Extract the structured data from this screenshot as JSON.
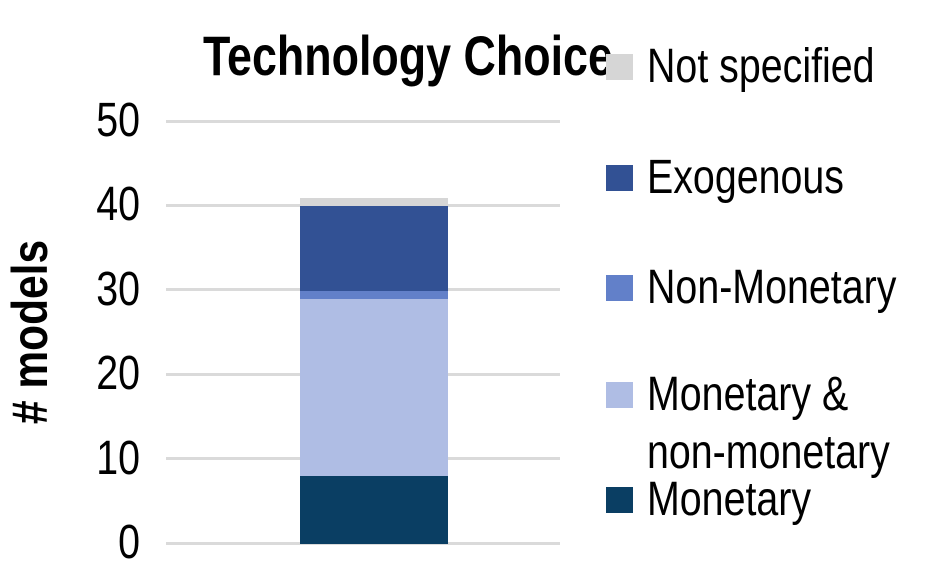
{
  "chart_data": {
    "type": "bar",
    "stacked": true,
    "title": "Technology Choice",
    "xlabel": "",
    "ylabel": "# models",
    "ylim": [
      0,
      50
    ],
    "yticks": [
      0,
      10,
      20,
      30,
      40,
      50
    ],
    "gridlines": true,
    "legend_position": "right",
    "categories": [
      "Technology Choice"
    ],
    "series": [
      {
        "name": "Monetary",
        "value": 8,
        "color": "#0a3e63"
      },
      {
        "name": "Monetary & non-monetary",
        "value": 21,
        "color": "#afbde4"
      },
      {
        "name": "Non-Monetary",
        "value": 1,
        "color": "#6280c9"
      },
      {
        "name": "Exogenous",
        "value": 10,
        "color": "#325194"
      },
      {
        "name": "Not specified",
        "value": 1,
        "color": "#d6d6d6"
      }
    ],
    "total_models": 41
  },
  "legend": {
    "items": [
      {
        "label": "Not specified",
        "color": "#d6d6d6"
      },
      {
        "label": "Exogenous",
        "color": "#325194"
      },
      {
        "label": "Non-Monetary",
        "color": "#6280c9"
      },
      {
        "label": "Monetary & non-monetary",
        "color": "#afbde4"
      },
      {
        "label": "Monetary",
        "color": "#0a3e63"
      }
    ]
  },
  "colors": {
    "background": "#ffffff",
    "gridline": "#dadada",
    "text": "#000000"
  }
}
